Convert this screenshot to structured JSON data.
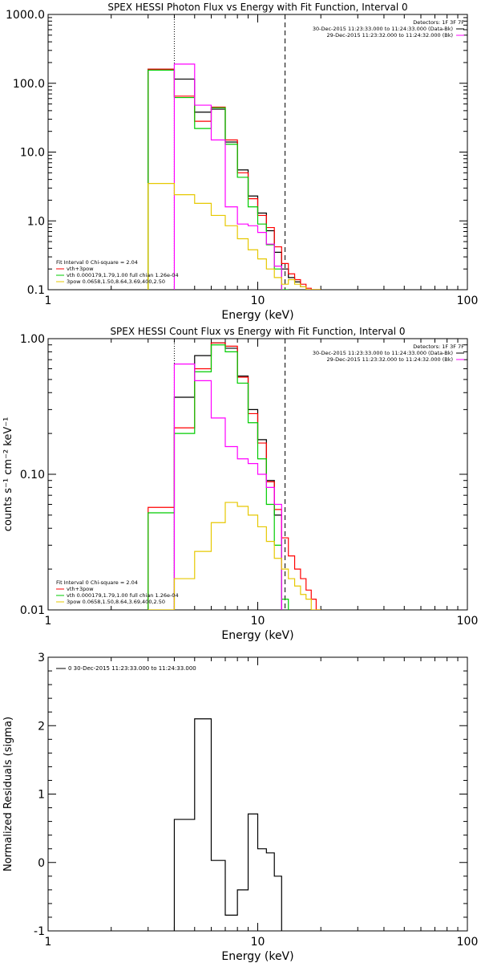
{
  "chart_data": [
    {
      "type": "line",
      "title": "SPEX HESSI Photon Flux vs Energy with Fit Function, Interval 0",
      "xlabel": "Energy (keV)",
      "ylabel": "",
      "xscale": "log",
      "yscale": "log",
      "xlim": [
        1,
        100
      ],
      "ylim": [
        0.1,
        1000
      ],
      "xticks": [
        {
          "v": 1,
          "label": "1"
        },
        {
          "v": 10,
          "label": "10"
        },
        {
          "v": 100,
          "label": "100"
        }
      ],
      "yticks": [
        {
          "v": 0.1,
          "label": "0.1"
        },
        {
          "v": 1,
          "label": "1.0"
        },
        {
          "v": 10,
          "label": "10.0"
        },
        {
          "v": 100,
          "label": "100.0"
        },
        {
          "v": 1000,
          "label": "1000.0"
        }
      ],
      "vlines": [
        {
          "x": 4.0,
          "style": "dotted"
        },
        {
          "x": 13.5,
          "style": "dashed"
        }
      ],
      "legend_top_right": [
        {
          "text": "Detectors: 1F 3F 7F",
          "color": "",
          "line": false
        },
        {
          "text": "30-Dec-2015 11:23:33.000 to 11:24:33.000 (Data-Bk)",
          "color": "#000000",
          "line": true
        },
        {
          "text": "29-Dec-2015 11:23:32.000 to 11:24:32.000 (Bk)",
          "color": "#ff00ff",
          "line": true
        }
      ],
      "legend_bottom_left": [
        {
          "text": "Fit Interval 0   Chi-square = 2.04",
          "color": "",
          "line": false
        },
        {
          "text": "vth+3pow",
          "color": "#ff0000",
          "line": true
        },
        {
          "text": "vth 0.000179,1.79,1.00  full chian 1.26e-04",
          "color": "#00cc00",
          "line": true
        },
        {
          "text": "3pow 0.0658,1.50,8.64,3.69,400,2.50",
          "color": "#e6c800",
          "line": true
        }
      ],
      "series": [
        {
          "color": "#000000",
          "edges": [
            3,
            4,
            5,
            6,
            7,
            8,
            9,
            10,
            11,
            12,
            13,
            14,
            15,
            16,
            17,
            18,
            19,
            20
          ],
          "values": [
            160,
            115,
            38,
            42,
            14,
            5.5,
            2.3,
            1.3,
            0.72,
            0.35,
            0.2,
            0.15,
            0.13,
            0.11,
            0.1,
            0.1,
            0.1
          ]
        },
        {
          "color": "#ff0000",
          "edges": [
            3,
            4,
            5,
            6,
            7,
            8,
            9,
            10,
            11,
            12,
            13,
            14,
            15,
            16,
            17,
            18,
            19,
            20
          ],
          "values": [
            160,
            65,
            28,
            45,
            15,
            5,
            2.1,
            1.2,
            0.8,
            0.42,
            0.24,
            0.17,
            0.14,
            0.12,
            0.105,
            0.1,
            0.1
          ]
        },
        {
          "color": "#00cc00",
          "edges": [
            3,
            4,
            5,
            6,
            7,
            8,
            9,
            10,
            11,
            12,
            13,
            14
          ],
          "values": [
            155,
            62,
            22,
            44,
            13,
            4.3,
            1.6,
            0.9,
            0.45,
            0.2,
            0.1
          ]
        },
        {
          "color": "#ff00ff",
          "edges": [
            4,
            5,
            6,
            7,
            8,
            9,
            10,
            11,
            12,
            13
          ],
          "values": [
            190,
            48,
            15,
            1.6,
            0.9,
            0.85,
            0.68,
            0.46,
            0.22
          ]
        },
        {
          "color": "#e6c800",
          "edges": [
            3,
            4,
            5,
            6,
            7,
            8,
            9,
            10,
            11,
            12,
            13,
            14,
            15,
            16,
            17,
            18,
            19,
            20
          ],
          "values": [
            3.5,
            2.4,
            1.8,
            1.2,
            0.85,
            0.55,
            0.38,
            0.28,
            0.2,
            0.15,
            0.12,
            0.14,
            0.12,
            0.11,
            0.1,
            0.1,
            0.1
          ]
        }
      ]
    },
    {
      "type": "line",
      "title": "SPEX HESSI Count Flux vs Energy with Fit Function, Interval 0",
      "xlabel": "Energy (keV)",
      "ylabel": "counts s⁻¹ cm⁻² keV⁻¹",
      "xscale": "log",
      "yscale": "log",
      "xlim": [
        1,
        100
      ],
      "ylim": [
        0.01,
        1
      ],
      "xticks": [
        {
          "v": 1,
          "label": "1"
        },
        {
          "v": 10,
          "label": "10"
        },
        {
          "v": 100,
          "label": "100"
        }
      ],
      "yticks": [
        {
          "v": 0.01,
          "label": "0.01"
        },
        {
          "v": 0.1,
          "label": "0.10"
        },
        {
          "v": 1,
          "label": "1.00"
        }
      ],
      "vlines": [
        {
          "x": 4.0,
          "style": "dotted"
        },
        {
          "x": 13.5,
          "style": "dashed"
        }
      ],
      "legend_top_right": [
        {
          "text": "Detectors: 1F 3F 7F",
          "color": "",
          "line": false
        },
        {
          "text": "30-Dec-2015 11:23:33.000 to 11:24:33.000 (Data-Bk)",
          "color": "#000000",
          "line": true
        },
        {
          "text": "29-Dec-2015 11:23:32.000 to 11:24:32.000 (Bk)",
          "color": "#ff00ff",
          "line": true
        }
      ],
      "legend_bottom_left": [
        {
          "text": "Fit Interval 0   Chi-square = 2.04",
          "color": "",
          "line": false
        },
        {
          "text": "vth+3pow",
          "color": "#ff0000",
          "line": true
        },
        {
          "text": "vth 0.000179,1.79,1.00  full chian 1.26e-04",
          "color": "#00cc00",
          "line": true
        },
        {
          "text": "3pow 0.0658,1.50,8.64,3.69,400,2.50",
          "color": "#e6c800",
          "line": true
        }
      ],
      "series": [
        {
          "color": "#000000",
          "edges": [
            4,
            5,
            6,
            7,
            8,
            9,
            10,
            11,
            12,
            13
          ],
          "values": [
            0.37,
            0.75,
            0.93,
            0.85,
            0.53,
            0.3,
            0.18,
            0.09,
            0.05
          ]
        },
        {
          "color": "#ff0000",
          "edges": [
            3,
            4,
            5,
            6,
            7,
            8,
            9,
            10,
            11,
            12,
            13,
            14,
            15,
            16,
            17,
            18,
            19,
            20
          ],
          "values": [
            0.057,
            0.22,
            0.6,
            0.93,
            0.88,
            0.52,
            0.28,
            0.17,
            0.088,
            0.055,
            0.034,
            0.025,
            0.02,
            0.017,
            0.014,
            0.012,
            0.01
          ]
        },
        {
          "color": "#00cc00",
          "edges": [
            3,
            4,
            5,
            6,
            7,
            8,
            9,
            10,
            11,
            12,
            13,
            14
          ],
          "values": [
            0.052,
            0.2,
            0.57,
            0.9,
            0.8,
            0.47,
            0.24,
            0.13,
            0.06,
            0.03,
            0.012
          ]
        },
        {
          "color": "#ff00ff",
          "edges": [
            4,
            5,
            6,
            7,
            8,
            9,
            10,
            11,
            12,
            13
          ],
          "values": [
            0.65,
            0.49,
            0.26,
            0.16,
            0.13,
            0.12,
            0.1,
            0.08,
            0.06
          ]
        },
        {
          "color": "#e6c800",
          "edges": [
            3,
            4,
            5,
            6,
            7,
            8,
            9,
            10,
            11,
            12,
            13,
            14,
            15,
            16,
            17,
            18,
            19,
            20
          ],
          "values": [
            0.01,
            0.017,
            0.027,
            0.044,
            0.062,
            0.058,
            0.05,
            0.041,
            0.032,
            0.024,
            0.02,
            0.017,
            0.015,
            0.013,
            0.012,
            0.01,
            0.01
          ]
        }
      ]
    },
    {
      "type": "line",
      "title": "",
      "xlabel": "Energy (keV)",
      "ylabel": "Normalized Residuals (sigma)",
      "xscale": "log",
      "yscale": "linear",
      "xlim": [
        1,
        100
      ],
      "ylim": [
        -1,
        3
      ],
      "xticks": [
        {
          "v": 1,
          "label": "1"
        },
        {
          "v": 10,
          "label": "10"
        },
        {
          "v": 100,
          "label": "100"
        }
      ],
      "yticks": [
        {
          "v": -1,
          "label": "-1"
        },
        {
          "v": 0,
          "label": "0"
        },
        {
          "v": 1,
          "label": "1"
        },
        {
          "v": 2,
          "label": "2"
        },
        {
          "v": 3,
          "label": "3"
        }
      ],
      "vlines": [],
      "legend_top_right": [],
      "legend_bottom_left": [],
      "legend_top_left": [
        {
          "text": "0  30-Dec-2015 11:23:33.000 to 11:24:33.000",
          "color": "#000000",
          "line": true
        }
      ],
      "series": [
        {
          "color": "#000000",
          "edges": [
            4,
            5,
            6,
            7,
            8,
            9,
            10,
            11,
            12,
            13
          ],
          "values": [
            0.63,
            2.1,
            0.03,
            -0.77,
            -0.4,
            0.71,
            0.2,
            0.14,
            -0.2
          ],
          "drop_to": -1
        }
      ]
    }
  ]
}
